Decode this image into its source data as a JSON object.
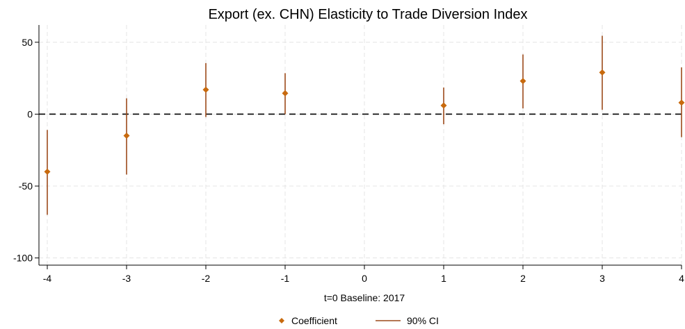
{
  "chart_data": {
    "type": "scatter",
    "title": "Export (ex. CHN) Elasticity to Trade Diversion Index",
    "xlabel": "t=0 Baseline: 2017",
    "ylabel": "",
    "xlim": [
      -4,
      4
    ],
    "ylim": [
      -105,
      62
    ],
    "x_ticks": [
      -4,
      -3,
      -2,
      -1,
      0,
      1,
      2,
      3,
      4
    ],
    "y_ticks": [
      50,
      0,
      -50,
      -100
    ],
    "grid": true,
    "reference_line": 0,
    "series": [
      {
        "name": "Coefficient",
        "kind": "point",
        "x": [
          -4,
          -3,
          -2,
          -1,
          1,
          2,
          3,
          4
        ],
        "y": [
          -40,
          -15,
          17,
          14.5,
          6,
          23,
          29,
          8
        ]
      },
      {
        "name": "90% CI",
        "kind": "errorbar",
        "x": [
          -4,
          -3,
          -2,
          -1,
          1,
          2,
          3,
          4
        ],
        "low": [
          -70,
          -42,
          -2,
          0,
          -7,
          4,
          3,
          -16
        ],
        "high": [
          -11,
          11,
          35.5,
          28.5,
          18.5,
          41.5,
          54.5,
          32.5
        ]
      }
    ],
    "legend_position": "bottom",
    "colors": {
      "marker": "#c86a0e",
      "ci_line": "#9c4a1a",
      "zero_line": "#000000",
      "grid": "#e4e4e4"
    }
  }
}
